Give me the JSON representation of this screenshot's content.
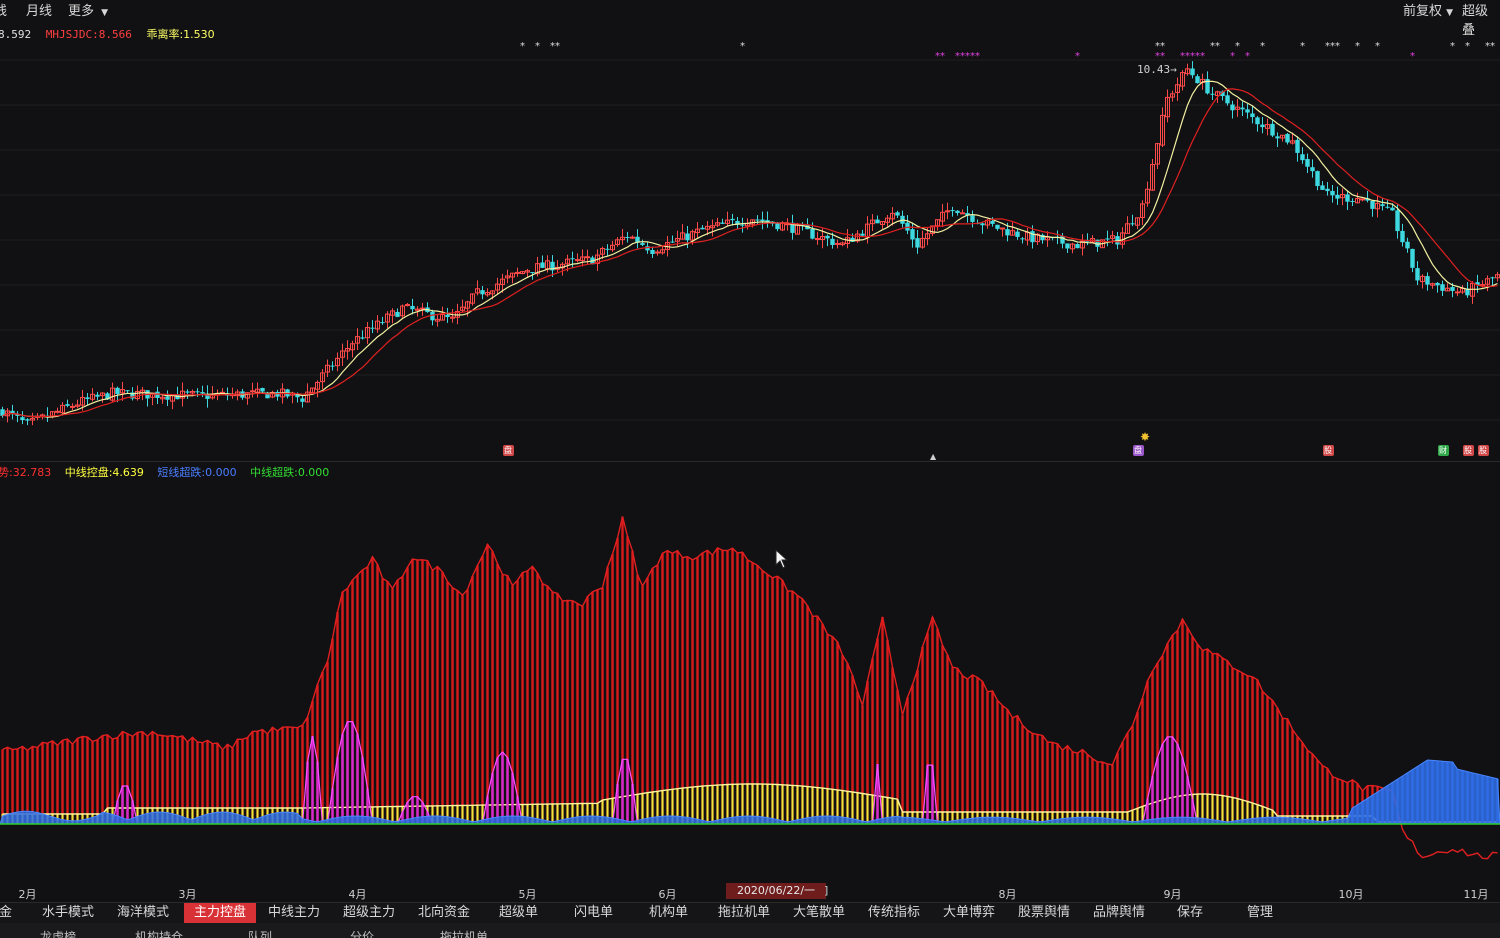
{
  "toolbar": {
    "left_items": [
      "线",
      "月线",
      "更多"
    ],
    "right_items": [
      "前复权",
      "超级叠"
    ]
  },
  "main_indicator": {
    "first_value": "8.592",
    "mhjsjdc": "MHJSJDC:8.566",
    "deviation": "乖离率:1.530",
    "colors": {
      "first": "#e0e0e0",
      "mhjsjdc": "#ff4040",
      "deviation": "#ffff66"
    }
  },
  "high_label": "10.43",
  "sub_indicator": {
    "trend": "势:32.783",
    "mid_control": "中线控盘:4.639",
    "short_super": "短线超跌:0.000",
    "mid_super": "中线超跌:0.000",
    "colors": {
      "trend": "#ff3030",
      "mid_control": "#ffff40",
      "short_super": "#4a7dff",
      "mid_super": "#33dd33"
    }
  },
  "months": [
    {
      "label": "2月",
      "idx": 4
    },
    {
      "label": "3月",
      "idx": 36
    },
    {
      "label": "4月",
      "idx": 70
    },
    {
      "label": "5月",
      "idx": 104
    },
    {
      "label": "6月",
      "idx": 132
    },
    {
      "label": "8月",
      "idx": 200
    },
    {
      "label": "9月",
      "idx": 233
    },
    {
      "label": "10月",
      "idx": 268
    },
    {
      "label": "11月",
      "idx": 293
    }
  ],
  "date_tooltip": "2020/06/22/一",
  "tabs": [
    "资金",
    "水手模式",
    "海洋模式",
    "主力控盘",
    "中线主力",
    "超级主力",
    "北向资金",
    "超级单",
    "闪电单",
    "机构单",
    "拖拉机单",
    "大笔散单",
    "传统指标",
    "大单博弈",
    "股票舆情",
    "品牌舆情",
    "保存",
    "管理"
  ],
  "active_tab": "主力控盘",
  "tabs2": [
    "龙虎榜",
    "机构持仓",
    "队列",
    "分价",
    "拖拉机单"
  ],
  "badges": [
    {
      "text": "盘",
      "idx": 101,
      "color": "#d04848"
    },
    {
      "text": "盘",
      "idx": 227,
      "color": "#9a56c8"
    },
    {
      "text": "股",
      "idx": 265,
      "color": "#d04848"
    },
    {
      "text": "财",
      "idx": 288,
      "color": "#2fa84a"
    },
    {
      "text": "股",
      "idx": 293,
      "color": "#d04848"
    },
    {
      "text": "股",
      "idx": 296,
      "color": "#d04848"
    }
  ],
  "star_groups": [
    {
      "idx": [
        104,
        107,
        110,
        111,
        148,
        231,
        232,
        242,
        243,
        247,
        252,
        260,
        265,
        266,
        267,
        271,
        275,
        290,
        293,
        297,
        298
      ],
      "color": "#dcdcdc"
    },
    {
      "idx": [
        187,
        188,
        191,
        192,
        193,
        194,
        195,
        215,
        231,
        232,
        236,
        237,
        238,
        239,
        240,
        246,
        249,
        282
      ],
      "color": "#e040e0"
    }
  ],
  "chart_data": {
    "type": "candlestick",
    "start_price": 3.1,
    "price_range": [
      2.8,
      10.8
    ],
    "bar_count": 300,
    "price_path": [
      [
        0,
        3.2
      ],
      [
        5,
        2.9
      ],
      [
        15,
        3.35
      ],
      [
        22,
        3.55
      ],
      [
        40,
        3.5
      ],
      [
        55,
        3.55
      ],
      [
        60,
        3.45
      ],
      [
        70,
        4.6
      ],
      [
        80,
        5.3
      ],
      [
        90,
        5.05
      ],
      [
        95,
        5.6
      ],
      [
        105,
        6.1
      ],
      [
        118,
        6.3
      ],
      [
        125,
        6.8
      ],
      [
        130,
        6.5
      ],
      [
        140,
        6.9
      ],
      [
        150,
        7.15
      ],
      [
        158,
        6.95
      ],
      [
        168,
        6.6
      ],
      [
        178,
        7.3
      ],
      [
        183,
        6.6
      ],
      [
        190,
        7.4
      ],
      [
        196,
        7.05
      ],
      [
        205,
        6.75
      ],
      [
        215,
        6.6
      ],
      [
        223,
        6.7
      ],
      [
        228,
        7.4
      ],
      [
        233,
        9.6
      ],
      [
        237,
        10.2
      ],
      [
        242,
        9.7
      ],
      [
        250,
        9.2
      ],
      [
        258,
        8.7
      ],
      [
        265,
        7.6
      ],
      [
        272,
        7.55
      ],
      [
        278,
        7.2
      ],
      [
        283,
        5.9
      ],
      [
        292,
        5.6
      ],
      [
        300,
        6.0
      ]
    ],
    "trend_path": [
      [
        0,
        18
      ],
      [
        10,
        20
      ],
      [
        20,
        22
      ],
      [
        30,
        23
      ],
      [
        45,
        19
      ],
      [
        50,
        23
      ],
      [
        60,
        24
      ],
      [
        65,
        41
      ],
      [
        68,
        58
      ],
      [
        74,
        66
      ],
      [
        78,
        58
      ],
      [
        82,
        67
      ],
      [
        88,
        63
      ],
      [
        92,
        57
      ],
      [
        97,
        70
      ],
      [
        102,
        59
      ],
      [
        106,
        65
      ],
      [
        110,
        57
      ],
      [
        116,
        55
      ],
      [
        120,
        60
      ],
      [
        124,
        76
      ],
      [
        128,
        59
      ],
      [
        132,
        68
      ],
      [
        138,
        67
      ],
      [
        146,
        69
      ],
      [
        152,
        64
      ],
      [
        160,
        56
      ],
      [
        168,
        43
      ],
      [
        172,
        30
      ],
      [
        176,
        51
      ],
      [
        180,
        28
      ],
      [
        186,
        51
      ],
      [
        190,
        39
      ],
      [
        196,
        35
      ],
      [
        202,
        27
      ],
      [
        210,
        20
      ],
      [
        216,
        18
      ],
      [
        222,
        15
      ],
      [
        226,
        25
      ],
      [
        230,
        39
      ],
      [
        236,
        51
      ],
      [
        240,
        44
      ],
      [
        244,
        41
      ],
      [
        250,
        37
      ],
      [
        258,
        24
      ],
      [
        264,
        14
      ],
      [
        272,
        9
      ],
      [
        278,
        8
      ],
      [
        280,
        -2
      ],
      [
        284,
        -8
      ],
      [
        290,
        -6
      ],
      [
        295,
        -8
      ],
      [
        300,
        -8
      ]
    ],
    "series": [
      {
        "name": "势",
        "color": "#ff3030"
      },
      {
        "name": "中线控盘",
        "color": "#ffff40"
      },
      {
        "name": "短线超跌",
        "color": "#4a7dff"
      },
      {
        "name": "中线超跌",
        "color": "#33dd33"
      }
    ]
  }
}
